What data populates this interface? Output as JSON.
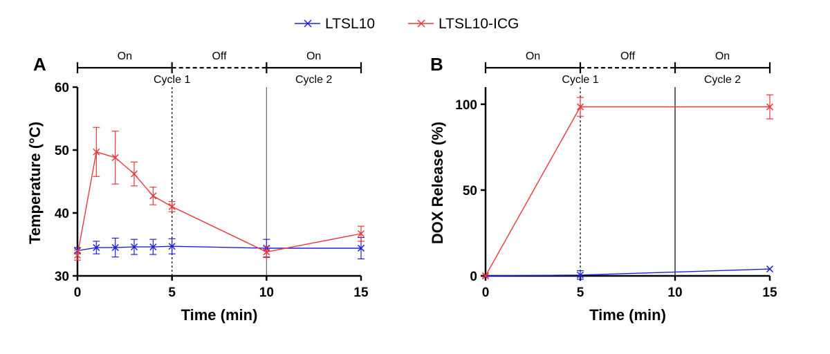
{
  "legend": [
    {
      "name": "LTSL10",
      "color": "#2020d8"
    },
    {
      "name": "LTSL10-ICG",
      "color": "#e8383c"
    }
  ],
  "chart_data": [
    {
      "type": "line",
      "panel": "A",
      "xlabel": "Time (min)",
      "ylabel": "Temperature (°C)",
      "xlim": [
        0,
        15
      ],
      "ylim": [
        30,
        60
      ],
      "xticks": [
        0,
        5,
        10,
        15
      ],
      "yticks": [
        30,
        40,
        50,
        60
      ],
      "phases": [
        {
          "label": "On",
          "start": 0,
          "end": 5,
          "style": "solid"
        },
        {
          "label": "Off",
          "start": 5,
          "end": 10,
          "style": "dashed"
        },
        {
          "label": "On",
          "start": 10,
          "end": 15,
          "style": "solid"
        }
      ],
      "cycles": [
        {
          "label": "Cycle 1",
          "center": 5
        },
        {
          "label": "Cycle 2",
          "center": 12.5
        }
      ],
      "vlines": [
        {
          "x": 5,
          "style": "dashed"
        },
        {
          "x": 10,
          "style": "solid"
        }
      ],
      "series": [
        {
          "name": "LTSL10",
          "color": "#2020d8",
          "x": [
            0,
            1,
            2,
            3,
            4,
            5,
            10,
            15
          ],
          "y": [
            34.0,
            34.5,
            34.5,
            34.6,
            34.6,
            34.7,
            34.4,
            34.4
          ],
          "err": [
            0.5,
            1.0,
            1.5,
            1.2,
            1.2,
            1.2,
            1.4,
            1.7
          ]
        },
        {
          "name": "LTSL10-ICG",
          "color": "#e8383c",
          "x": [
            0,
            1,
            2,
            3,
            4,
            5,
            10,
            15
          ],
          "y": [
            33.3,
            49.7,
            48.8,
            46.2,
            42.7,
            41.0,
            33.8,
            36.7
          ],
          "err": [
            0.8,
            3.9,
            4.2,
            1.9,
            1.4,
            0.8,
            0.9,
            1.2
          ]
        }
      ]
    },
    {
      "type": "line",
      "panel": "B",
      "xlabel": "Time (min)",
      "ylabel": "DOX Release (%)",
      "xlim": [
        0,
        15
      ],
      "ylim": [
        0,
        110
      ],
      "xticks": [
        0,
        5,
        10,
        15
      ],
      "yticks": [
        0,
        50,
        100
      ],
      "phases": [
        {
          "label": "On",
          "start": 0,
          "end": 5,
          "style": "solid"
        },
        {
          "label": "Off",
          "start": 5,
          "end": 10,
          "style": "dashed"
        },
        {
          "label": "On",
          "start": 10,
          "end": 15,
          "style": "solid"
        }
      ],
      "cycles": [
        {
          "label": "Cycle 1",
          "center": 5
        },
        {
          "label": "Cycle 2",
          "center": 12.5
        }
      ],
      "vlines": [
        {
          "x": 5,
          "style": "dashed"
        },
        {
          "x": 10,
          "style": "solid"
        }
      ],
      "series": [
        {
          "name": "LTSL10",
          "color": "#2020d8",
          "x": [
            0,
            5,
            15
          ],
          "y": [
            0,
            0.5,
            4.0
          ],
          "err": [
            0.5,
            2.5,
            0
          ]
        },
        {
          "name": "LTSL10-ICG",
          "color": "#e8383c",
          "x": [
            0,
            5,
            15
          ],
          "y": [
            0,
            98.5,
            98.5
          ],
          "err": [
            0.5,
            5.5,
            7.0
          ]
        }
      ]
    }
  ]
}
